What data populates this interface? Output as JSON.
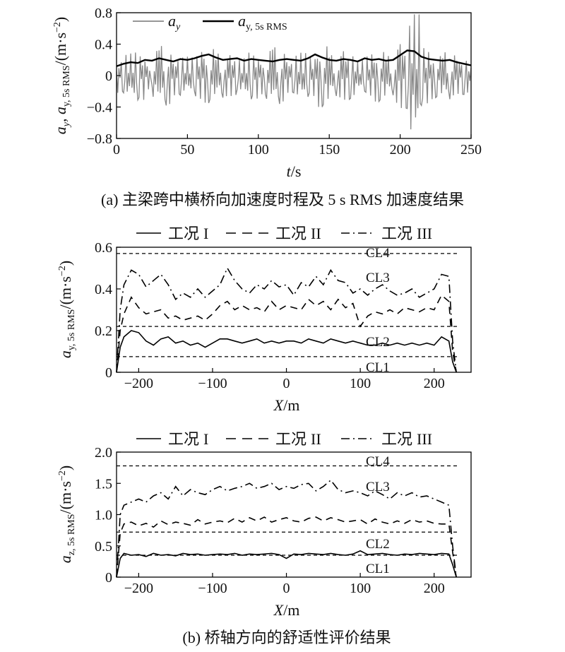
{
  "chart_data": [
    {
      "type": "line",
      "panel": "a",
      "x": [
        0,
        5,
        10,
        15,
        20,
        25,
        30,
        35,
        40,
        45,
        50,
        55,
        60,
        65,
        70,
        75,
        80,
        85,
        90,
        95,
        100,
        105,
        110,
        115,
        120,
        125,
        130,
        135,
        140,
        145,
        150,
        155,
        160,
        165,
        170,
        175,
        180,
        185,
        190,
        195,
        200,
        205,
        210,
        215,
        220,
        225,
        230,
        235,
        240,
        245,
        250
      ],
      "series": [
        {
          "name": "a_y",
          "legend_main": "a",
          "legend_sub": "y",
          "style": "thin-gray",
          "values": [
            0.05,
            -0.22,
            0.28,
            -0.31,
            0.18,
            -0.12,
            0.32,
            -0.38,
            0.15,
            -0.25,
            0.24,
            -0.2,
            0.3,
            -0.35,
            0.2,
            -0.28,
            0.26,
            -0.18,
            0.22,
            -0.3,
            0.19,
            -0.24,
            0.33,
            -0.36,
            0.17,
            -0.22,
            0.29,
            -0.27,
            0.21,
            -0.4,
            0.23,
            -0.26,
            0.31,
            -0.29,
            0.18,
            -0.2,
            0.27,
            -0.33,
            0.2,
            -0.25,
            0.4,
            -0.42,
            0.78,
            -0.38,
            0.3,
            -0.28,
            0.22,
            -0.3,
            0.19,
            -0.24,
            0.1
          ]
        },
        {
          "name": "a_y, 5s RMS",
          "legend_main": "a",
          "legend_sub": "y, 5s RMS",
          "style": "thick-black",
          "values": [
            0.12,
            0.15,
            0.17,
            0.16,
            0.2,
            0.19,
            0.22,
            0.2,
            0.18,
            0.21,
            0.2,
            0.22,
            0.25,
            0.27,
            0.23,
            0.2,
            0.21,
            0.22,
            0.19,
            0.21,
            0.2,
            0.19,
            0.18,
            0.2,
            0.21,
            0.2,
            0.19,
            0.22,
            0.27,
            0.23,
            0.2,
            0.19,
            0.21,
            0.2,
            0.18,
            0.22,
            0.2,
            0.21,
            0.19,
            0.2,
            0.26,
            0.32,
            0.31,
            0.24,
            0.21,
            0.2,
            0.19,
            0.2,
            0.17,
            0.15,
            0.13
          ]
        }
      ],
      "xlabel_main": "t",
      "xlabel_unit": "/s",
      "ylabel_parts": [
        "a",
        "y",
        ", a",
        "y, 5s RMS",
        "/(m·s",
        "−2",
        ")"
      ],
      "xlim": [
        0,
        250
      ],
      "ylim": [
        -0.8,
        0.8
      ],
      "xticks": [
        "0",
        "50",
        "100",
        "150",
        "200",
        "250"
      ],
      "yticks": [
        "−0.8",
        "−0.4",
        "0",
        "0.4",
        "0.8"
      ],
      "caption": "(a) 主梁跨中横桥向加速度时程及 5 s RMS 加速度结果"
    },
    {
      "type": "line",
      "panel": "b1",
      "x": [
        -230,
        -225,
        -220,
        -210,
        -200,
        -190,
        -180,
        -170,
        -160,
        -150,
        -140,
        -130,
        -120,
        -110,
        -100,
        -90,
        -80,
        -70,
        -60,
        -50,
        -40,
        -30,
        -20,
        -10,
        0,
        10,
        20,
        30,
        40,
        50,
        60,
        70,
        80,
        90,
        100,
        110,
        120,
        130,
        140,
        150,
        160,
        170,
        180,
        190,
        200,
        210,
        220,
        225,
        230
      ],
      "series": [
        {
          "name": "工况 I",
          "dash": "solid",
          "values": [
            0.0,
            0.12,
            0.17,
            0.2,
            0.19,
            0.15,
            0.13,
            0.16,
            0.17,
            0.14,
            0.15,
            0.13,
            0.14,
            0.12,
            0.14,
            0.16,
            0.16,
            0.15,
            0.14,
            0.15,
            0.16,
            0.14,
            0.15,
            0.14,
            0.15,
            0.15,
            0.14,
            0.16,
            0.15,
            0.14,
            0.16,
            0.15,
            0.14,
            0.15,
            0.14,
            0.13,
            0.13,
            0.14,
            0.13,
            0.14,
            0.13,
            0.14,
            0.13,
            0.14,
            0.13,
            0.17,
            0.15,
            0.05,
            0.0
          ]
        },
        {
          "name": "工况 II",
          "dash": "dashed",
          "values": [
            0.0,
            0.2,
            0.28,
            0.36,
            0.31,
            0.28,
            0.29,
            0.3,
            0.26,
            0.27,
            0.25,
            0.26,
            0.27,
            0.25,
            0.28,
            0.32,
            0.34,
            0.3,
            0.32,
            0.3,
            0.31,
            0.29,
            0.34,
            0.3,
            0.32,
            0.31,
            0.3,
            0.35,
            0.32,
            0.34,
            0.3,
            0.35,
            0.31,
            0.33,
            0.22,
            0.27,
            0.29,
            0.28,
            0.3,
            0.28,
            0.31,
            0.3,
            0.29,
            0.31,
            0.3,
            0.37,
            0.34,
            0.1,
            0.0
          ]
        },
        {
          "name": "工况 III",
          "dash": "dashdot",
          "values": [
            0.0,
            0.3,
            0.42,
            0.49,
            0.47,
            0.41,
            0.44,
            0.47,
            0.42,
            0.35,
            0.38,
            0.36,
            0.4,
            0.36,
            0.39,
            0.42,
            0.5,
            0.44,
            0.4,
            0.38,
            0.42,
            0.4,
            0.44,
            0.41,
            0.42,
            0.37,
            0.43,
            0.41,
            0.46,
            0.42,
            0.49,
            0.44,
            0.43,
            0.38,
            0.4,
            0.37,
            0.4,
            0.42,
            0.39,
            0.37,
            0.38,
            0.4,
            0.36,
            0.38,
            0.4,
            0.47,
            0.46,
            0.15,
            0.0
          ]
        }
      ],
      "reference_lines": [
        {
          "label": "CL1",
          "y": 0.075
        },
        {
          "label": "CL2",
          "y": 0.22
        },
        {
          "label": "CL3",
          "y": null
        },
        {
          "label": "CL4",
          "y": 0.57
        }
      ],
      "xlabel_main": "X",
      "xlabel_unit": "/m",
      "ylabel_parts": [
        "a",
        "y, 5s RMS",
        "/(m·s",
        "−2",
        ")"
      ],
      "xlim": [
        -230,
        250
      ],
      "ylim": [
        0,
        0.6
      ],
      "xticks": [
        "−200",
        "−100",
        "0",
        "100",
        "200"
      ],
      "yticks": [
        "0",
        "0.2",
        "0.4",
        "0.6"
      ],
      "legend_main": "工况",
      "legend_numerals": [
        "I",
        "II",
        "III"
      ]
    },
    {
      "type": "line",
      "panel": "b2",
      "x": [
        -230,
        -225,
        -220,
        -210,
        -200,
        -190,
        -180,
        -170,
        -160,
        -150,
        -140,
        -130,
        -120,
        -110,
        -100,
        -90,
        -80,
        -70,
        -60,
        -50,
        -40,
        -30,
        -20,
        -10,
        0,
        10,
        20,
        30,
        40,
        50,
        60,
        70,
        80,
        90,
        100,
        110,
        120,
        130,
        140,
        150,
        160,
        170,
        180,
        190,
        200,
        210,
        220,
        225,
        230
      ],
      "series": [
        {
          "name": "工况 I",
          "dash": "solid",
          "values": [
            0.0,
            0.3,
            0.38,
            0.35,
            0.36,
            0.33,
            0.38,
            0.35,
            0.36,
            0.34,
            0.38,
            0.36,
            0.37,
            0.35,
            0.36,
            0.37,
            0.36,
            0.38,
            0.35,
            0.37,
            0.36,
            0.37,
            0.38,
            0.36,
            0.3,
            0.37,
            0.36,
            0.38,
            0.37,
            0.36,
            0.38,
            0.36,
            0.35,
            0.37,
            0.42,
            0.36,
            0.37,
            0.38,
            0.36,
            0.35,
            0.37,
            0.36,
            0.38,
            0.37,
            0.36,
            0.38,
            0.37,
            0.2,
            0.0
          ]
        },
        {
          "name": "工况 II",
          "dash": "dashed",
          "values": [
            0.0,
            0.7,
            0.85,
            0.88,
            0.82,
            0.86,
            0.8,
            0.9,
            0.84,
            0.88,
            0.86,
            0.83,
            0.92,
            0.85,
            0.88,
            0.9,
            0.87,
            0.94,
            0.88,
            0.95,
            0.9,
            0.96,
            0.88,
            0.92,
            0.95,
            0.9,
            0.88,
            0.94,
            0.96,
            0.9,
            0.95,
            0.92,
            0.88,
            0.9,
            0.92,
            0.85,
            0.93,
            0.88,
            0.85,
            0.9,
            0.86,
            0.92,
            0.88,
            0.9,
            0.86,
            0.85,
            0.85,
            0.4,
            0.0
          ]
        },
        {
          "name": "工况 III",
          "dash": "dashdot",
          "values": [
            0.0,
            1.0,
            1.15,
            1.2,
            1.25,
            1.2,
            1.3,
            1.35,
            1.25,
            1.45,
            1.3,
            1.4,
            1.35,
            1.32,
            1.4,
            1.45,
            1.38,
            1.42,
            1.45,
            1.5,
            1.42,
            1.45,
            1.5,
            1.4,
            1.45,
            1.42,
            1.48,
            1.5,
            1.38,
            1.45,
            1.55,
            1.4,
            1.35,
            1.38,
            1.35,
            1.3,
            1.38,
            1.32,
            1.25,
            1.35,
            1.3,
            1.35,
            1.28,
            1.3,
            1.25,
            1.2,
            1.15,
            0.5,
            0.0
          ]
        }
      ],
      "reference_lines": [
        {
          "label": "CL1",
          "y": 0.35
        },
        {
          "label": "CL2",
          "y": 0.72
        },
        {
          "label": "CL3",
          "y": null
        },
        {
          "label": "CL4",
          "y": 1.78
        }
      ],
      "xlabel_main": "X",
      "xlabel_unit": "/m",
      "ylabel_parts": [
        "a",
        "z, 5s RMS",
        "/(m·s",
        "−2",
        ")"
      ],
      "xlim": [
        -230,
        250
      ],
      "ylim": [
        0,
        2.0
      ],
      "xticks": [
        "−200",
        "−100",
        "0",
        "100",
        "200"
      ],
      "yticks": [
        "0",
        "0.5",
        "1.0",
        "1.5",
        "2.0"
      ],
      "legend_main": "工况",
      "legend_numerals": [
        "I",
        "II",
        "III"
      ],
      "caption": "(b) 桥轴方向的舒适性评价结果"
    }
  ]
}
